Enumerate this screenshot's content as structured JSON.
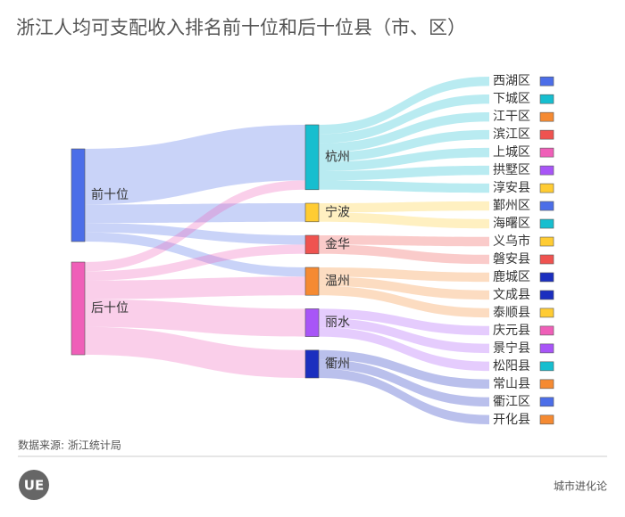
{
  "chart_data": {
    "type": "sankey",
    "title": "浙江人均可支配收入排名前十位和后十位县（市、区）",
    "source_note": "数据来源: 浙江统计局",
    "nodes": [
      {
        "name": "前十位",
        "color": "#4c6ee8",
        "column": 0
      },
      {
        "name": "后十位",
        "color": "#ef5fb8",
        "column": 0
      },
      {
        "name": "杭州",
        "color": "#17becf",
        "column": 1
      },
      {
        "name": "宁波",
        "color": "#ffcc33",
        "column": 1
      },
      {
        "name": "金华",
        "color": "#ef5350",
        "column": 1
      },
      {
        "name": "温州",
        "color": "#f58a32",
        "column": 1
      },
      {
        "name": "丽水",
        "color": "#a855f7",
        "column": 1
      },
      {
        "name": "衢州",
        "color": "#1b2fbf",
        "column": 1
      },
      {
        "name": "西湖区",
        "color": "#4c6ee8",
        "column": 2
      },
      {
        "name": "下城区",
        "color": "#17becf",
        "column": 2
      },
      {
        "name": "江干区",
        "color": "#f58a32",
        "column": 2
      },
      {
        "name": "滨江区",
        "color": "#ef5350",
        "column": 2
      },
      {
        "name": "上城区",
        "color": "#ef5fb8",
        "column": 2
      },
      {
        "name": "拱墅区",
        "color": "#a855f7",
        "column": 2
      },
      {
        "name": "淳安县",
        "color": "#ffcc33",
        "column": 2
      },
      {
        "name": "鄞州区",
        "color": "#4c6ee8",
        "column": 2
      },
      {
        "name": "海曙区",
        "color": "#17becf",
        "column": 2
      },
      {
        "name": "义乌市",
        "color": "#ffcc33",
        "column": 2
      },
      {
        "name": "磐安县",
        "color": "#ef5350",
        "column": 2
      },
      {
        "name": "鹿城区",
        "color": "#1b2fbf",
        "column": 2
      },
      {
        "name": "文成县",
        "color": "#1b2fbf",
        "column": 2
      },
      {
        "name": "泰顺县",
        "color": "#ffcc33",
        "column": 2
      },
      {
        "name": "庆元县",
        "color": "#ef5fb8",
        "column": 2
      },
      {
        "name": "景宁县",
        "color": "#a855f7",
        "column": 2
      },
      {
        "name": "松阳县",
        "color": "#17becf",
        "column": 2
      },
      {
        "name": "常山县",
        "color": "#f58a32",
        "column": 2
      },
      {
        "name": "衢江区",
        "color": "#4c6ee8",
        "column": 2
      },
      {
        "name": "开化县",
        "color": "#f58a32",
        "column": 2
      }
    ],
    "links": [
      {
        "source": "前十位",
        "target": "杭州",
        "value": 6
      },
      {
        "source": "前十位",
        "target": "宁波",
        "value": 2
      },
      {
        "source": "前十位",
        "target": "金华",
        "value": 1
      },
      {
        "source": "前十位",
        "target": "温州",
        "value": 1
      },
      {
        "source": "后十位",
        "target": "杭州",
        "value": 1
      },
      {
        "source": "后十位",
        "target": "金华",
        "value": 1
      },
      {
        "source": "后十位",
        "target": "温州",
        "value": 2
      },
      {
        "source": "后十位",
        "target": "丽水",
        "value": 3
      },
      {
        "source": "后十位",
        "target": "衢州",
        "value": 3
      },
      {
        "source": "杭州",
        "target": "西湖区",
        "value": 1
      },
      {
        "source": "杭州",
        "target": "下城区",
        "value": 1
      },
      {
        "source": "杭州",
        "target": "江干区",
        "value": 1
      },
      {
        "source": "杭州",
        "target": "滨江区",
        "value": 1
      },
      {
        "source": "杭州",
        "target": "上城区",
        "value": 1
      },
      {
        "source": "杭州",
        "target": "拱墅区",
        "value": 1
      },
      {
        "source": "杭州",
        "target": "淳安县",
        "value": 1
      },
      {
        "source": "宁波",
        "target": "鄞州区",
        "value": 1
      },
      {
        "source": "宁波",
        "target": "海曙区",
        "value": 1
      },
      {
        "source": "金华",
        "target": "义乌市",
        "value": 1
      },
      {
        "source": "金华",
        "target": "磐安县",
        "value": 1
      },
      {
        "source": "温州",
        "target": "鹿城区",
        "value": 1
      },
      {
        "source": "温州",
        "target": "文成县",
        "value": 1
      },
      {
        "source": "温州",
        "target": "泰顺县",
        "value": 1
      },
      {
        "source": "丽水",
        "target": "庆元县",
        "value": 1
      },
      {
        "source": "丽水",
        "target": "景宁县",
        "value": 1
      },
      {
        "source": "丽水",
        "target": "松阳县",
        "value": 1
      },
      {
        "source": "衢州",
        "target": "常山县",
        "value": 1
      },
      {
        "source": "衢州",
        "target": "衢江区",
        "value": 1
      },
      {
        "source": "衢州",
        "target": "开化县",
        "value": 1
      }
    ]
  },
  "footer": {
    "logo": "UE",
    "brand": "城市进化论"
  }
}
